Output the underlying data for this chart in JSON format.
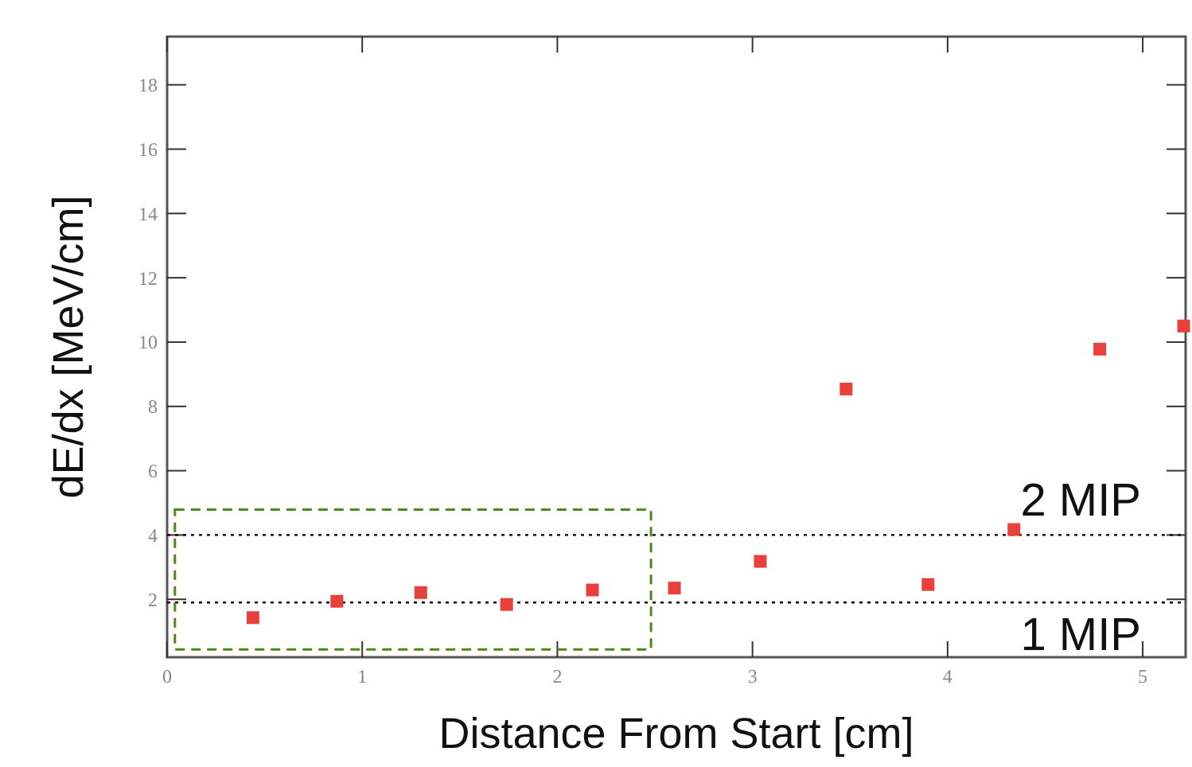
{
  "chart_data": {
    "type": "scatter",
    "xlabel": "Distance From Start [cm]",
    "ylabel": "dE/dx [MeV/cm]",
    "x": [
      0.44,
      0.87,
      1.3,
      1.74,
      2.18,
      2.6,
      3.04,
      3.48,
      3.9,
      4.34,
      4.78,
      5.21
    ],
    "series": [
      {
        "color": "#e8413c",
        "values": [
          1.43,
          1.94,
          2.21,
          1.84,
          2.29,
          2.35,
          3.18,
          8.54,
          2.46,
          4.17,
          9.78,
          10.5
        ]
      }
    ],
    "xlim": [
      0,
      5.22
    ],
    "ylim": [
      0.2,
      19.5
    ],
    "xticks": [
      0,
      1,
      2,
      3,
      4,
      5
    ],
    "yticks": [
      2,
      4,
      6,
      8,
      10,
      12,
      14,
      16,
      18
    ],
    "marker": "square",
    "grid": false,
    "ref_lines": [
      {
        "axis": "y",
        "value": 1.9,
        "label": "1 MIP",
        "color": "#000000",
        "line_style": "dotted"
      },
      {
        "axis": "y",
        "value": 4.0,
        "label": "2 MIP",
        "color": "#000000",
        "line_style": "dotted"
      }
    ]
  }
}
